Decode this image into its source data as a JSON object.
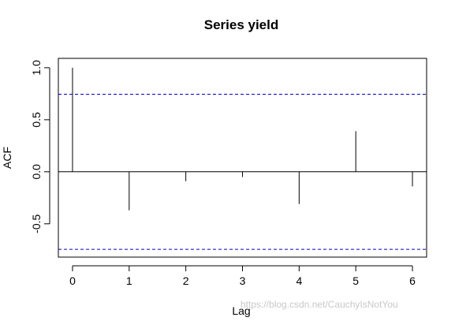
{
  "chart_data": {
    "type": "bar",
    "title": "Series  yield",
    "xlabel": "Lag",
    "ylabel": "ACF",
    "x": [
      0,
      1,
      2,
      3,
      4,
      5,
      6
    ],
    "values": [
      1.0,
      -0.37,
      -0.09,
      -0.05,
      -0.31,
      0.39,
      -0.14
    ],
    "xlim": [
      -0.25,
      6.25
    ],
    "ylim": [
      -0.82,
      1.09
    ],
    "x_ticks": [
      "0",
      "1",
      "2",
      "3",
      "4",
      "5",
      "6"
    ],
    "y_ticks": [
      "-0.5",
      "0.0",
      "0.5",
      "1.0"
    ],
    "y_tick_values": [
      -0.5,
      0.0,
      0.5,
      1.0
    ],
    "confidence_bounds": [
      0.745,
      -0.745
    ],
    "confidence_color": "#0000cc",
    "grid": false,
    "zero_line": true
  },
  "watermark": "https://blog.csdn.net/CauchyIsNotYou"
}
